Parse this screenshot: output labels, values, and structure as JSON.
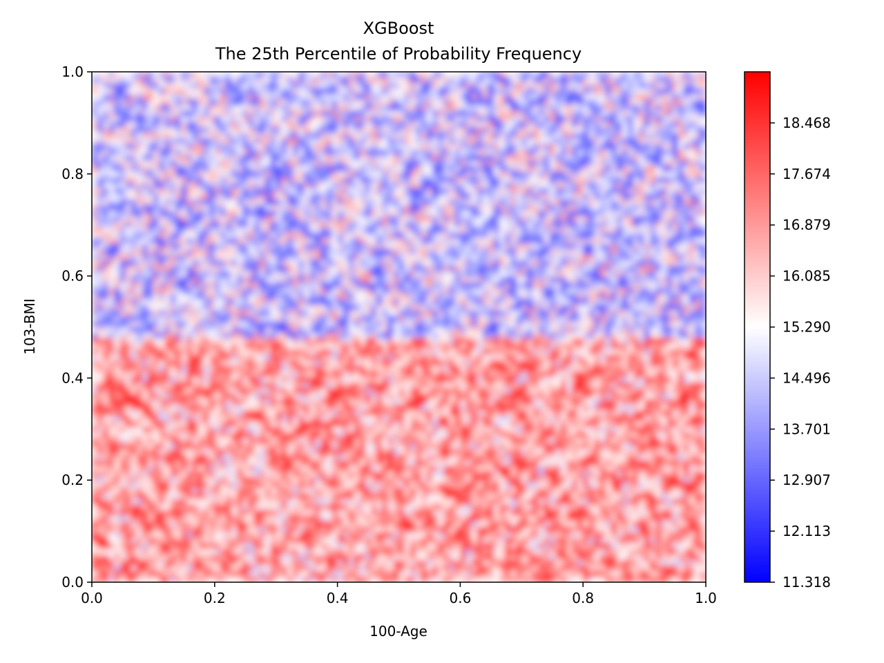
{
  "chart_data": {
    "type": "heatmap",
    "title": "XGBoost",
    "subtitle": "The 25th Percentile of Probability Frequency",
    "xlabel": "100-Age",
    "ylabel": "103-BMI",
    "xlim": [
      0.0,
      1.0
    ],
    "ylim": [
      0.0,
      1.0
    ],
    "x_ticks": [
      "0.0",
      "0.2",
      "0.4",
      "0.6",
      "0.8",
      "1.0"
    ],
    "y_ticks": [
      "0.0",
      "0.2",
      "0.4",
      "0.6",
      "0.8",
      "1.0"
    ],
    "x_tick_values": [
      0.0,
      0.2,
      0.4,
      0.6,
      0.8,
      1.0
    ],
    "y_tick_values": [
      0.0,
      0.2,
      0.4,
      0.6,
      0.8,
      1.0
    ],
    "colorbar": {
      "min": 11.318,
      "max": 19.263,
      "colormap": "bwr",
      "low_color": "#0000ff",
      "mid_color": "#ffffff",
      "high_color": "#ff0000",
      "ticks": [
        "11.318",
        "12.113",
        "12.907",
        "13.701",
        "14.496",
        "15.290",
        "16.085",
        "16.879",
        "17.674",
        "18.468"
      ],
      "tick_values": [
        11.318,
        12.113,
        12.907,
        13.701,
        14.496,
        15.29,
        16.085,
        16.879,
        17.674,
        18.468
      ]
    },
    "regions": [
      {
        "y_range": [
          0.0,
          0.48
        ],
        "mean_value": 17.0
      },
      {
        "y_range": [
          0.48,
          1.0
        ],
        "mean_value": 14.5
      }
    ],
    "grid": false
  }
}
